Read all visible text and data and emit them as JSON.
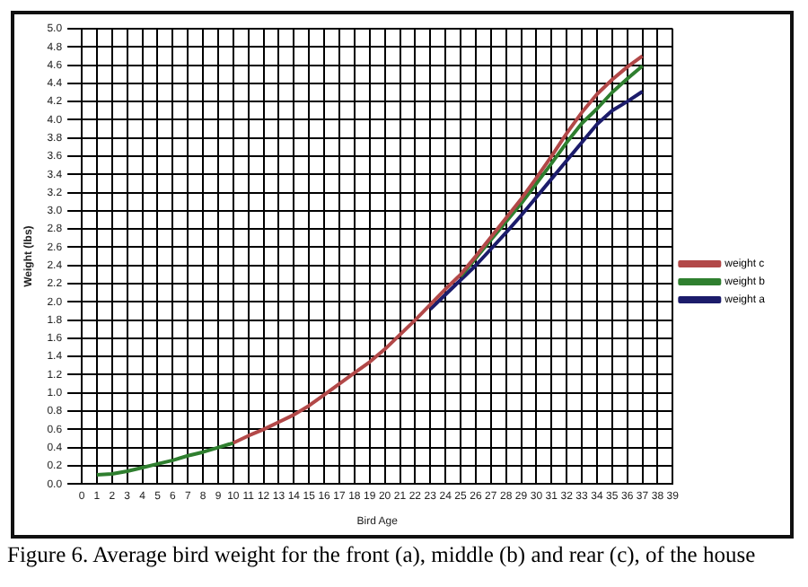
{
  "chart_data": {
    "type": "line",
    "xlabel": "Bird Age",
    "ylabel": "Weight (lbs)",
    "x": [
      1,
      2,
      3,
      4,
      5,
      6,
      7,
      8,
      9,
      10,
      11,
      12,
      13,
      14,
      15,
      16,
      17,
      18,
      19,
      20,
      21,
      22,
      23,
      24,
      25,
      26,
      27,
      28,
      29,
      30,
      31,
      32,
      33,
      34,
      35,
      36,
      37
    ],
    "series": [
      {
        "name": "weight a",
        "color": "#1c1c6b",
        "values": [
          null,
          null,
          null,
          null,
          null,
          null,
          null,
          null,
          null,
          null,
          null,
          null,
          null,
          null,
          null,
          null,
          null,
          null,
          null,
          null,
          null,
          null,
          1.92,
          2.08,
          2.24,
          2.4,
          2.58,
          2.76,
          2.95,
          3.15,
          3.35,
          3.55,
          3.75,
          3.95,
          4.1,
          4.2,
          4.31
        ]
      },
      {
        "name": "weight b",
        "color": "#2f7f2f",
        "values": [
          0.1,
          0.11,
          0.14,
          0.18,
          0.22,
          0.26,
          0.31,
          0.35,
          0.4,
          0.45,
          null,
          null,
          null,
          null,
          null,
          null,
          null,
          null,
          null,
          null,
          null,
          null,
          null,
          null,
          2.28,
          2.48,
          2.68,
          2.88,
          3.08,
          3.3,
          3.52,
          3.75,
          3.96,
          4.12,
          4.3,
          4.45,
          4.59
        ]
      },
      {
        "name": "weight c",
        "color": "#b24848",
        "values": [
          null,
          null,
          null,
          null,
          null,
          null,
          null,
          null,
          null,
          0.45,
          0.53,
          0.6,
          0.68,
          0.76,
          0.86,
          0.98,
          1.1,
          1.22,
          1.34,
          1.48,
          1.64,
          1.8,
          1.97,
          2.14,
          2.3,
          2.5,
          2.71,
          2.92,
          3.13,
          3.36,
          3.6,
          3.85,
          4.08,
          4.28,
          4.44,
          4.58,
          4.7
        ]
      }
    ],
    "xlim": [
      0,
      39
    ],
    "xticks": [
      0,
      1,
      2,
      3,
      4,
      5,
      6,
      7,
      8,
      9,
      10,
      11,
      12,
      13,
      14,
      15,
      16,
      17,
      18,
      19,
      20,
      21,
      22,
      23,
      24,
      25,
      26,
      27,
      28,
      29,
      30,
      31,
      32,
      33,
      34,
      35,
      36,
      37,
      38,
      39
    ],
    "ylim": [
      0,
      5
    ],
    "yticks": [
      {
        "value": 0,
        "label": "0.0"
      },
      0.2,
      0.4,
      0.6,
      0.8,
      {
        "value": 1,
        "label": "1.0"
      },
      1.2,
      1.4,
      1.6,
      1.8,
      {
        "value": 2,
        "label": "2.0"
      },
      2.2,
      2.4,
      2.6,
      2.8,
      {
        "value": 3,
        "label": "3.0"
      },
      3.2,
      3.4,
      3.6,
      3.8,
      {
        "value": 4,
        "label": "4.0"
      },
      4.2,
      4.4,
      4.6,
      4.8,
      {
        "value": 5,
        "label": "5.0"
      }
    ],
    "grid": true,
    "legend": "right",
    "marker": "none",
    "line_style": "solid",
    "annotations": [
      "Figure 6.  Average bird weight for the front (a), middle (b) and rear (c), of the house"
    ]
  }
}
